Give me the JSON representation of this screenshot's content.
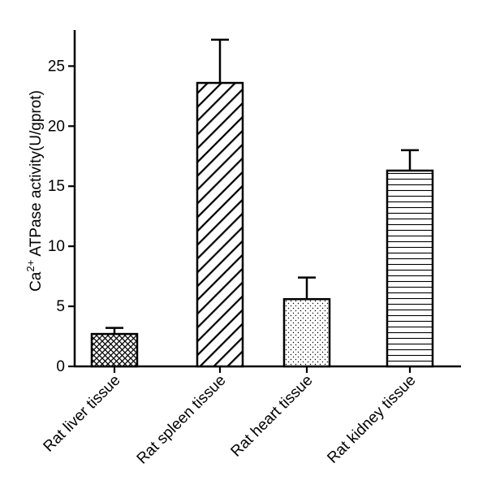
{
  "chart_data": {
    "type": "bar",
    "title": "",
    "xlabel": "",
    "ylabel": {
      "prefix": "Ca",
      "superscript": "2+",
      "suffix": " ATPase activity(U/gprot)"
    },
    "ylim": [
      0,
      28
    ],
    "yticks": [
      "0",
      "5",
      "10",
      "15",
      "20",
      "25"
    ],
    "categories": [
      "Rat liver tissue",
      "Rat spleen tissue",
      "Rat heart tissue",
      "Rat kidney tissue"
    ],
    "values": [
      2.7,
      23.6,
      5.6,
      16.3
    ],
    "errors": [
      0.5,
      3.6,
      1.8,
      1.7
    ],
    "patterns": [
      "crosshatch",
      "diagonal",
      "dots",
      "horizontal"
    ],
    "colors": {
      "fill": "#ffffff",
      "stroke": "#000000"
    }
  }
}
